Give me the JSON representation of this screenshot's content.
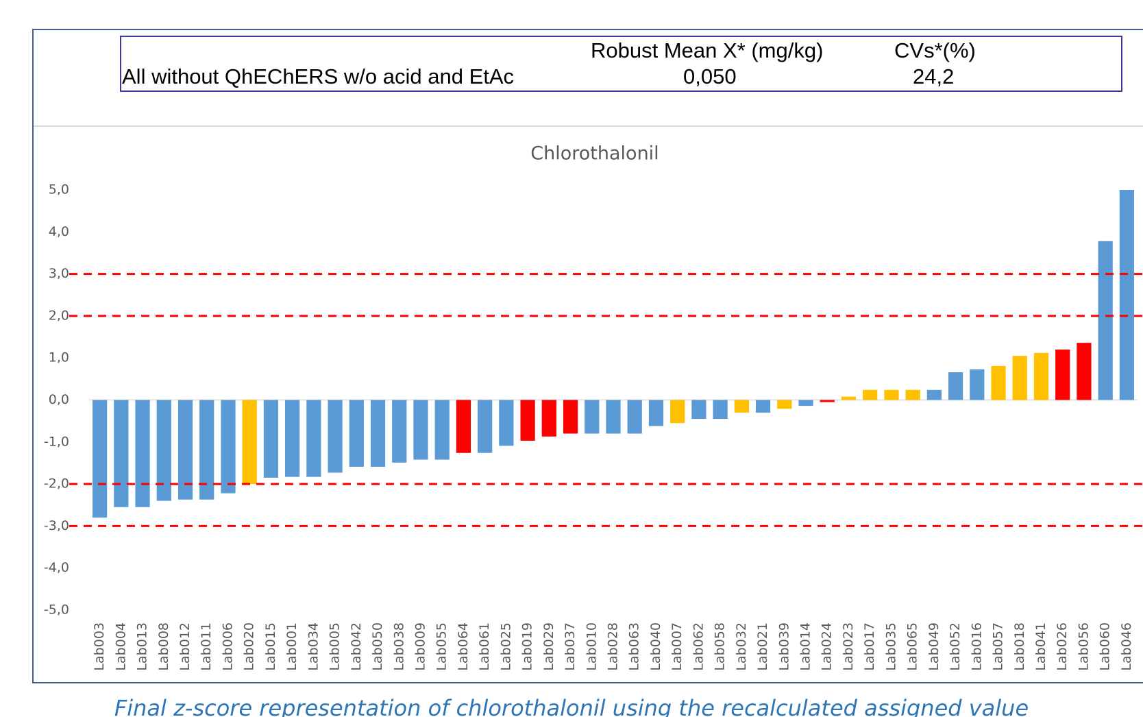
{
  "summary_table": {
    "header": [
      "Robust Mean X* (mg/kg)",
      "CVs*(%)"
    ],
    "row": [
      "All without QhEChERS w/o acid and EtAc",
      "0,050",
      "24,2"
    ]
  },
  "caption": "Final z-score representation of chlorothalonil using the recalculated assigned value",
  "chart_data": {
    "type": "bar",
    "title": "Chlorothalonil",
    "categories": [
      "Lab003",
      "Lab004",
      "Lab013",
      "Lab008",
      "Lab012",
      "Lab011",
      "Lab006",
      "Lab020",
      "Lab015",
      "Lab001",
      "Lab034",
      "Lab005",
      "Lab042",
      "Lab050",
      "Lab038",
      "Lab009",
      "Lab055",
      "Lab064",
      "Lab061",
      "Lab025",
      "Lab019",
      "Lab029",
      "Lab037",
      "Lab010",
      "Lab028",
      "Lab063",
      "Lab040",
      "Lab007",
      "Lab062",
      "Lab058",
      "Lab032",
      "Lab021",
      "Lab039",
      "Lab014",
      "Lab024",
      "Lab023",
      "Lab017",
      "Lab035",
      "Lab065",
      "Lab049",
      "Lab052",
      "Lab016",
      "Lab057",
      "Lab018",
      "Lab041",
      "Lab026",
      "Lab056",
      "Lab060",
      "Lab046"
    ],
    "values": [
      -2.8,
      -2.55,
      -2.55,
      -2.4,
      -2.37,
      -2.37,
      -2.22,
      -2.0,
      -1.85,
      -1.83,
      -1.83,
      -1.73,
      -1.59,
      -1.59,
      -1.49,
      -1.42,
      -1.42,
      -1.26,
      -1.26,
      -1.09,
      -0.97,
      -0.87,
      -0.8,
      -0.8,
      -0.8,
      -0.8,
      -0.62,
      -0.55,
      -0.45,
      -0.45,
      -0.3,
      -0.3,
      -0.21,
      -0.14,
      -0.05,
      0.08,
      0.24,
      0.24,
      0.24,
      0.24,
      0.66,
      0.73,
      0.81,
      1.05,
      1.12,
      1.2,
      1.36,
      3.78,
      5.0
    ],
    "colors": [
      "#5b9bd5",
      "#5b9bd5",
      "#5b9bd5",
      "#5b9bd5",
      "#5b9bd5",
      "#5b9bd5",
      "#5b9bd5",
      "#ffc000",
      "#5b9bd5",
      "#5b9bd5",
      "#5b9bd5",
      "#5b9bd5",
      "#5b9bd5",
      "#5b9bd5",
      "#5b9bd5",
      "#5b9bd5",
      "#5b9bd5",
      "#ff0000",
      "#5b9bd5",
      "#5b9bd5",
      "#ff0000",
      "#ff0000",
      "#ff0000",
      "#5b9bd5",
      "#5b9bd5",
      "#5b9bd5",
      "#5b9bd5",
      "#ffc000",
      "#5b9bd5",
      "#5b9bd5",
      "#ffc000",
      "#5b9bd5",
      "#ffc000",
      "#5b9bd5",
      "#ff0000",
      "#ffc000",
      "#ffc000",
      "#ffc000",
      "#ffc000",
      "#5b9bd5",
      "#5b9bd5",
      "#5b9bd5",
      "#ffc000",
      "#ffc000",
      "#ffc000",
      "#ff0000",
      "#ff0000",
      "#5b9bd5",
      "#5b9bd5"
    ],
    "ylim": [
      -5,
      5
    ],
    "yticks": [
      {
        "value": 5,
        "label": "5,0"
      },
      {
        "value": 4,
        "label": "4,0"
      },
      {
        "value": 3,
        "label": "3,0"
      },
      {
        "value": 2,
        "label": "2,0"
      },
      {
        "value": 1,
        "label": "1,0"
      },
      {
        "value": 0,
        "label": "0,0"
      },
      {
        "value": -1,
        "label": "-1,0"
      },
      {
        "value": -2,
        "label": "-2,0"
      },
      {
        "value": -3,
        "label": "-3,0"
      },
      {
        "value": -4,
        "label": "-4,0"
      },
      {
        "value": -5,
        "label": "-5,0"
      }
    ],
    "reference_lines": [
      3,
      2,
      -2,
      -3
    ],
    "reference_color": "#ff0000",
    "grid": false
  }
}
